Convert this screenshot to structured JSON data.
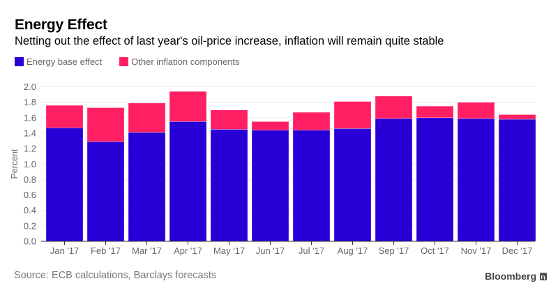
{
  "header": {
    "title": "Energy Effect",
    "subtitle": "Netting out the effect of last year's oil-price increase, inflation will remain quite stable"
  },
  "legend": [
    {
      "label": "Energy base effect",
      "color": "#2800d7"
    },
    {
      "label": "Other inflation components",
      "color": "#ff1f62"
    }
  ],
  "footer": {
    "source": "Source: ECB calculations, Barclays forecasts",
    "brand": "Bloomberg",
    "brand_icon": "bloomberg-chart-icon"
  },
  "chart_data": {
    "type": "bar",
    "stacked": true,
    "title": "Energy Effect",
    "subtitle": "Netting out the effect of last year's oil-price increase, inflation will remain quite stable",
    "xlabel": "",
    "ylabel": "Percent",
    "ylim": [
      0,
      2.0
    ],
    "yticks": [
      "0.0",
      "0.2",
      "0.4",
      "0.6",
      "0.8",
      "1.0",
      "1.2",
      "1.4",
      "1.6",
      "1.8",
      "2.0"
    ],
    "ytick_values": [
      0,
      0.2,
      0.4,
      0.6,
      0.8,
      1.0,
      1.2,
      1.4,
      1.6,
      1.8,
      2.0
    ],
    "grid": true,
    "legend_position": "top-left",
    "categories": [
      "Jan '17",
      "Feb '17",
      "Mar '17",
      "Apr '17",
      "May '17",
      "Jun '17",
      "Jul '17",
      "Aug '17",
      "Sep '17",
      "Oct '17",
      "Nov '17",
      "Dec '17"
    ],
    "series": [
      {
        "name": "Energy base effect",
        "color": "#2800d7",
        "values": [
          1.47,
          1.29,
          1.41,
          1.55,
          1.45,
          1.44,
          1.44,
          1.46,
          1.59,
          1.6,
          1.59,
          1.58
        ]
      },
      {
        "name": "Other inflation components",
        "color": "#ff1f62",
        "values": [
          0.29,
          0.44,
          0.38,
          0.39,
          0.25,
          0.11,
          0.23,
          0.35,
          0.29,
          0.15,
          0.21,
          0.06
        ]
      }
    ]
  }
}
